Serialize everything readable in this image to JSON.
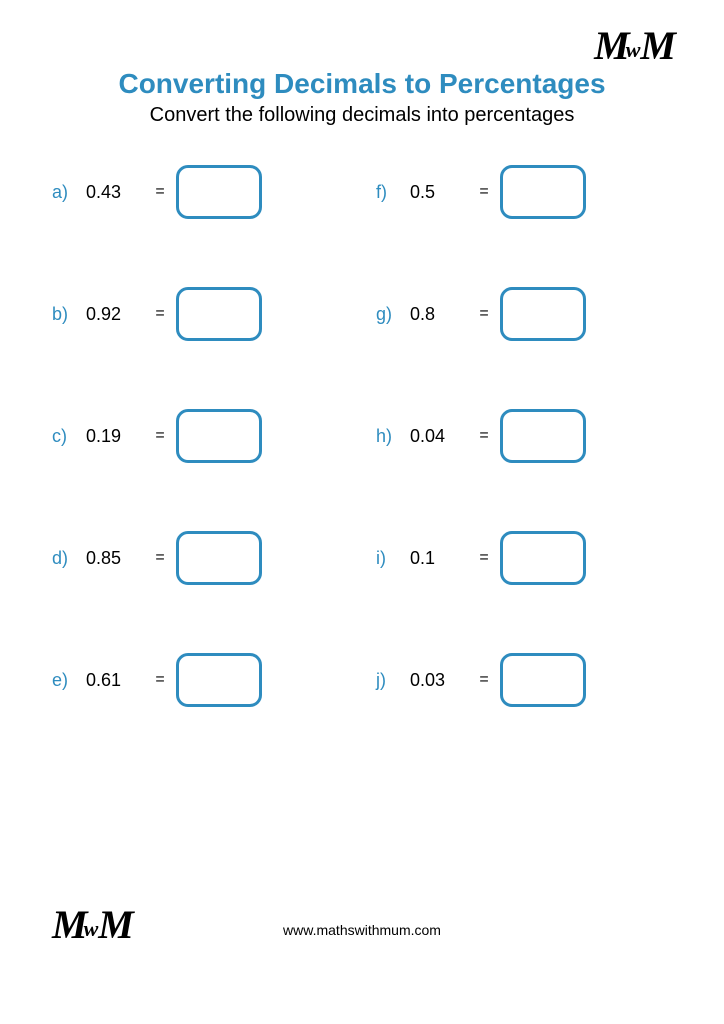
{
  "title": "Converting Decimals to Percentages",
  "subtitle": "Convert the following decimals into percentages",
  "title_color": "#2e8cbf",
  "accent_color": "#2e8cbf",
  "box_border_color": "#2e8cbf",
  "text_color": "#000000",
  "logo_text": "MwM",
  "footer": "www.mathswithmum.com",
  "problems_left": [
    {
      "label": "a)",
      "value": "0.43"
    },
    {
      "label": "b)",
      "value": "0.92"
    },
    {
      "label": "c)",
      "value": "0.19"
    },
    {
      "label": "d)",
      "value": "0.85"
    },
    {
      "label": "e)",
      "value": "0.61"
    }
  ],
  "problems_right": [
    {
      "label": "f)",
      "value": "0.5"
    },
    {
      "label": "g)",
      "value": "0.8"
    },
    {
      "label": "h)",
      "value": "0.04"
    },
    {
      "label": "i)",
      "value": "0.1"
    },
    {
      "label": "j)",
      "value": "0.03"
    }
  ]
}
